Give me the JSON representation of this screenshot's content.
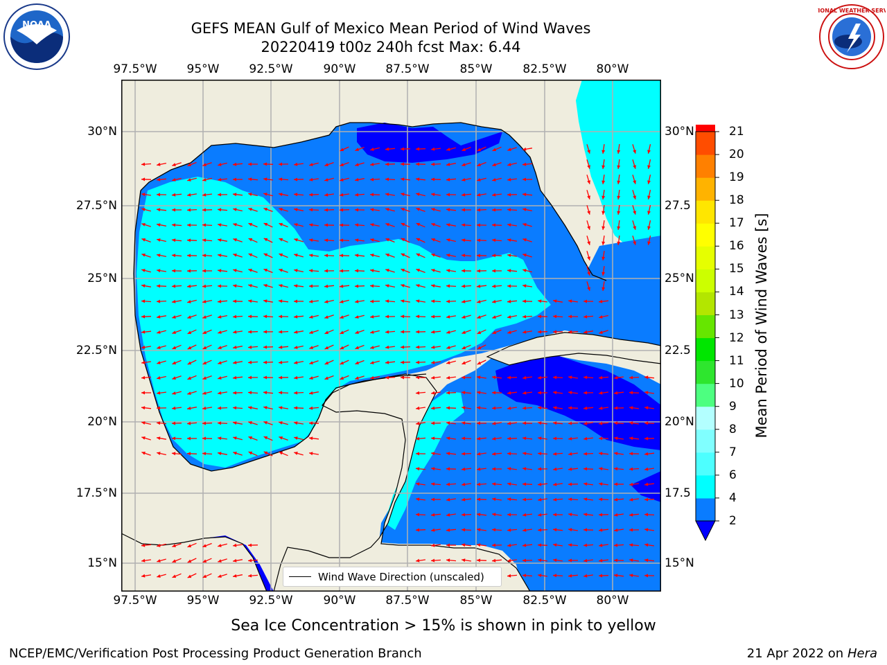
{
  "title": {
    "line1": "GEFS MEAN Gulf of Mexico Mean Period of Wind Waves",
    "line2": "20220419 t00z 240h fcst   Max: 6.44"
  },
  "logos": {
    "left_text": "NOAA",
    "right_text": "NATIONAL WEATHER SERVICE"
  },
  "lon_ticks": [
    "97.5°W",
    "95°W",
    "92.5°W",
    "90°W",
    "87.5°W",
    "85°W",
    "82.5°W",
    "80°W"
  ],
  "lat_ticks": [
    "30°N",
    "27.5°N",
    "25°N",
    "22.5°N",
    "20°N",
    "17.5°N",
    "15°N"
  ],
  "lat_ticks_right": [
    "30°N",
    "27.5",
    "25°N",
    "22.5",
    "20°N",
    "17.5",
    "15°N"
  ],
  "legend": {
    "label": "Wind Wave Direction (unscaled)"
  },
  "colorbar": {
    "title": "Mean Period of Wind Waves [s]",
    "levels": [
      "2",
      "4",
      "6",
      "7",
      "8",
      "9",
      "10",
      "11",
      "12",
      "13",
      "14",
      "15",
      "16",
      "17",
      "18",
      "19",
      "20",
      "21"
    ],
    "colors": [
      "#0a7cff",
      "#00ffff",
      "#4dffff",
      "#80ffff",
      "#b3ffff",
      "#4dff80",
      "#2ee62e",
      "#00e600",
      "#66e600",
      "#b3e600",
      "#ccff00",
      "#e6ff00",
      "#ffff00",
      "#ffe600",
      "#ffb300",
      "#ff8000",
      "#ff4d00",
      "#ff0000"
    ],
    "extend_color": "#0000ff"
  },
  "note": "Sea Ice Concentration > 15% is shown in pink to yellow",
  "footer": {
    "left": "NCEP/EMC/Verification Post Processing Product Generation Branch",
    "right_date": "21 Apr 2022 on",
    "right_machine": "Hera"
  },
  "map_colors": {
    "land": "#efedde",
    "band_2_4": "#0a7cff",
    "band_4_6": "#00ffff",
    "below_2": "#0000ff",
    "arrow": "#ff0000",
    "grid": "#b0b0b0"
  }
}
